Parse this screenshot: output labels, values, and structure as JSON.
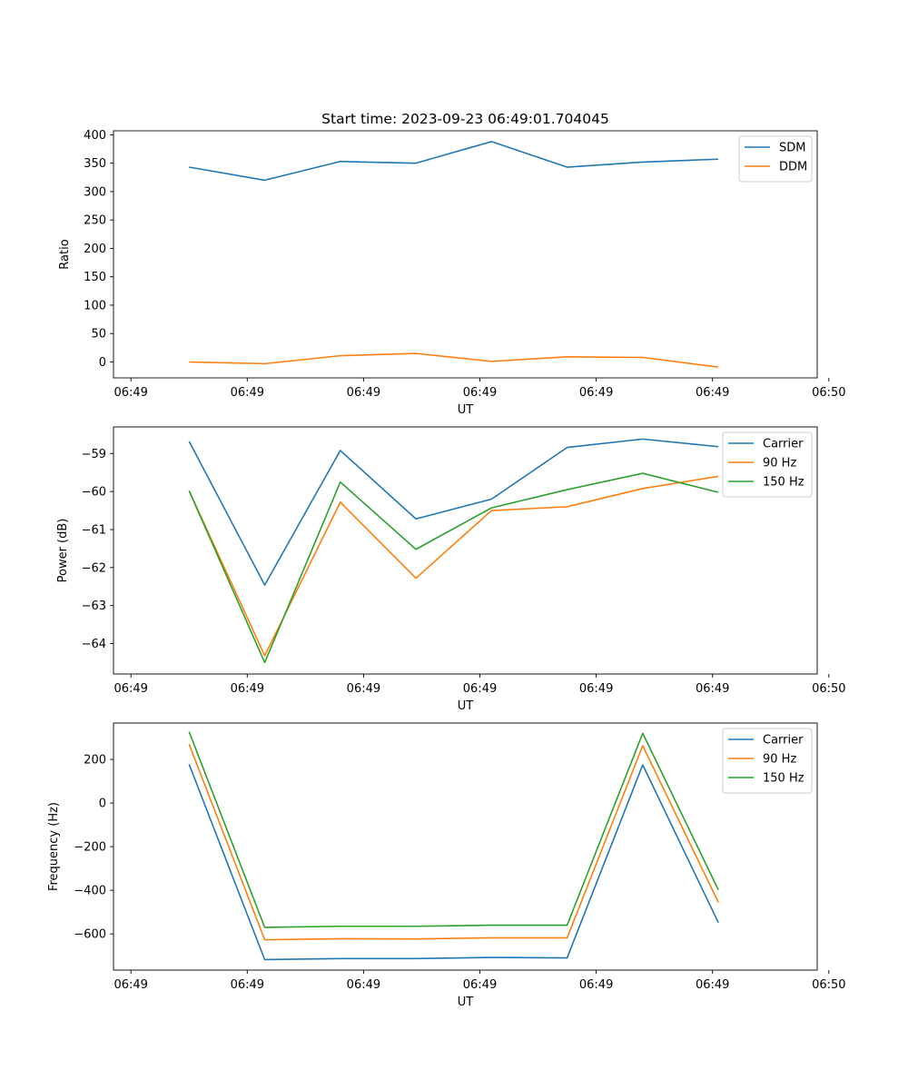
{
  "chart_data": [
    {
      "type": "line",
      "title": "Start time: 2023-09-23 06:49:01.704045",
      "xlabel": "UT",
      "ylabel": "Ratio",
      "x_index": [
        0.5,
        1.15,
        1.8,
        2.45,
        3.1,
        3.75,
        4.4,
        5.05
      ],
      "xlim": [
        -0.15,
        5.9
      ],
      "xticks": [
        0,
        1,
        2,
        3,
        4,
        5,
        6
      ],
      "xtick_labels": [
        "06:49",
        "06:49",
        "06:49",
        "06:49",
        "06:49",
        "06:49",
        "06:50"
      ],
      "ylim": [
        -28,
        407
      ],
      "yticks": [
        0,
        50,
        100,
        150,
        200,
        250,
        300,
        350,
        400
      ],
      "ytick_labels": [
        "0",
        "50",
        "100",
        "150",
        "200",
        "250",
        "300",
        "350",
        "400"
      ],
      "legend_loc": "upper right",
      "series": [
        {
          "name": "SDM",
          "color": "#1f77b4",
          "values": [
            343,
            320,
            353,
            350,
            388,
            343,
            352,
            357
          ]
        },
        {
          "name": "DDM",
          "color": "#ff7f0e",
          "values": [
            0,
            -3,
            11,
            15,
            1,
            9,
            8,
            -9
          ]
        }
      ]
    },
    {
      "type": "line",
      "title": "",
      "xlabel": "UT",
      "ylabel": "Power (dB)",
      "x_index": [
        0.5,
        1.15,
        1.8,
        2.45,
        3.1,
        3.75,
        4.4,
        5.05
      ],
      "xlim": [
        -0.15,
        5.9
      ],
      "xticks": [
        0,
        1,
        2,
        3,
        4,
        5,
        6
      ],
      "xtick_labels": [
        "06:49",
        "06:49",
        "06:49",
        "06:49",
        "06:49",
        "06:49",
        "06:50"
      ],
      "ylim": [
        -64.8,
        -58.3
      ],
      "yticks": [
        -64,
        -63,
        -62,
        -61,
        -60,
        -59
      ],
      "ytick_labels": [
        "−64",
        "−63",
        "−62",
        "−61",
        "−60",
        "−59"
      ],
      "legend_loc": "upper right",
      "series": [
        {
          "name": "Carrier",
          "color": "#1f77b4",
          "values": [
            -58.68,
            -62.46,
            -58.92,
            -60.72,
            -60.2,
            -58.84,
            -58.62,
            -58.82
          ]
        },
        {
          "name": "90 Hz",
          "color": "#ff7f0e",
          "values": [
            -59.98,
            -64.32,
            -60.28,
            -62.28,
            -60.5,
            -60.4,
            -59.92,
            -59.6
          ]
        },
        {
          "name": "150 Hz",
          "color": "#2ca02c",
          "values": [
            -59.98,
            -64.5,
            -59.75,
            -61.52,
            -60.43,
            -59.95,
            -59.52,
            -60.02
          ]
        }
      ]
    },
    {
      "type": "line",
      "title": "",
      "xlabel": "UT",
      "ylabel": "Frequency (Hz)",
      "x_index": [
        0.5,
        1.15,
        1.8,
        2.45,
        3.1,
        3.75,
        4.4,
        5.05
      ],
      "xlim": [
        -0.15,
        5.9
      ],
      "xticks": [
        0,
        1,
        2,
        3,
        4,
        5,
        6
      ],
      "xtick_labels": [
        "06:49",
        "06:49",
        "06:49",
        "06:49",
        "06:49",
        "06:49",
        "06:50"
      ],
      "ylim": [
        -766,
        367
      ],
      "yticks": [
        -600,
        -400,
        -200,
        0,
        200
      ],
      "ytick_labels": [
        "−600",
        "−400",
        "−200",
        "0",
        "200"
      ],
      "legend_loc": "upper right",
      "series": [
        {
          "name": "Carrier",
          "color": "#1f77b4",
          "values": [
            178,
            -718,
            -713,
            -713,
            -708,
            -710,
            175,
            -548
          ]
        },
        {
          "name": "90 Hz",
          "color": "#ff7f0e",
          "values": [
            270,
            -627,
            -622,
            -623,
            -618,
            -618,
            263,
            -455
          ]
        },
        {
          "name": "150 Hz",
          "color": "#2ca02c",
          "values": [
            327,
            -570,
            -565,
            -565,
            -560,
            -560,
            320,
            -398
          ]
        }
      ]
    }
  ]
}
